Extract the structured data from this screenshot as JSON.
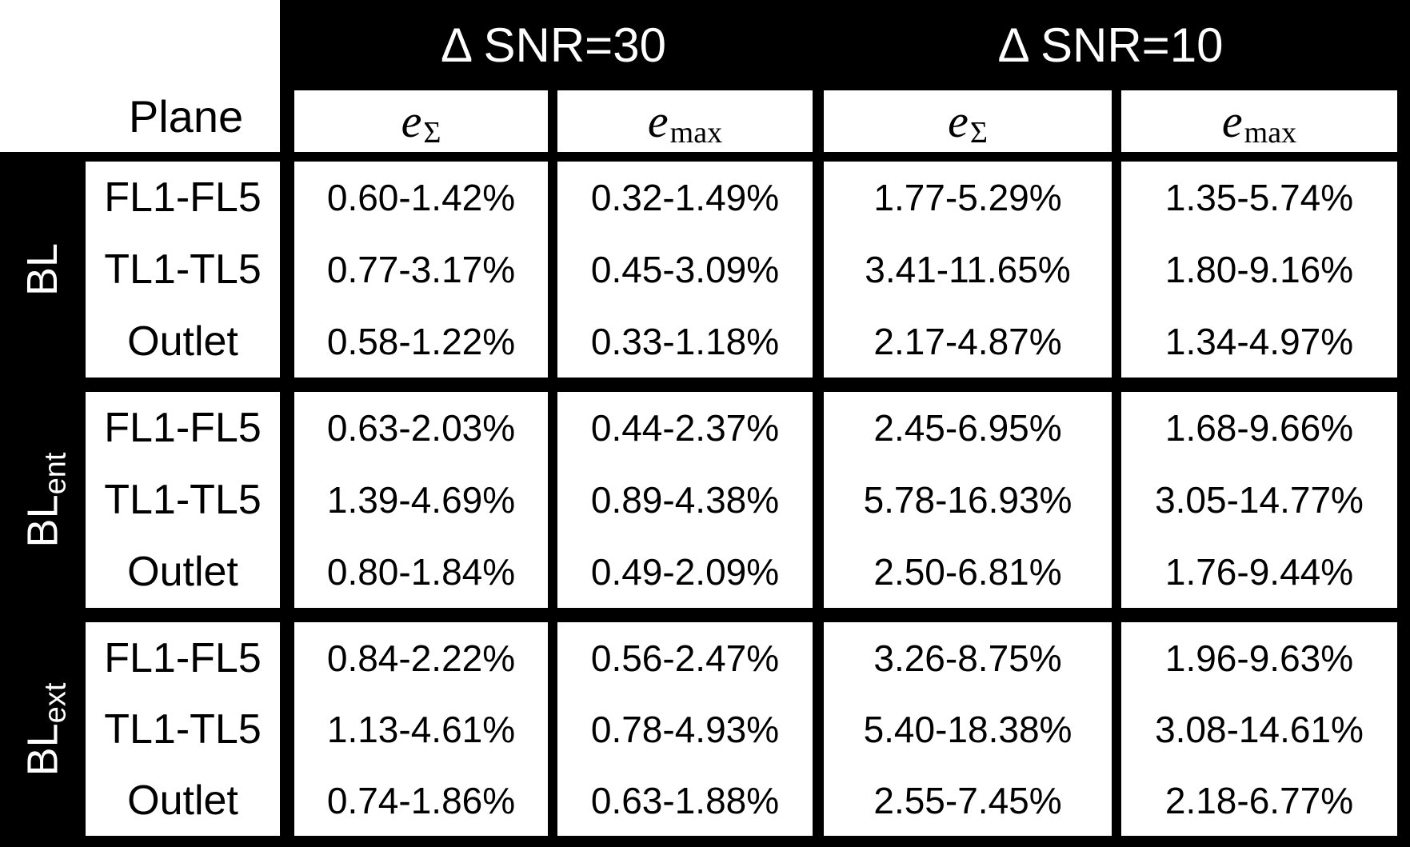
{
  "headers": {
    "snr30": "Δ SNR=30",
    "snr10": "Δ SNR=10",
    "plane": "Plane"
  },
  "subheaders": [
    {
      "base": "e",
      "sub": "Σ"
    },
    {
      "base": "e",
      "sub": "max"
    },
    {
      "base": "e",
      "sub": "Σ"
    },
    {
      "base": "e",
      "sub": "max"
    }
  ],
  "groups": [
    {
      "label": {
        "base": "BL",
        "sub": ""
      },
      "rows": [
        {
          "plane": "FL1-FL5",
          "values": [
            "0.60-1.42%",
            "0.32-1.49%",
            "1.77-5.29%",
            "1.35-5.74%"
          ]
        },
        {
          "plane": "TL1-TL5",
          "values": [
            "0.77-3.17%",
            "0.45-3.09%",
            "3.41-11.65%",
            "1.80-9.16%"
          ]
        },
        {
          "plane": "Outlet",
          "values": [
            "0.58-1.22%",
            "0.33-1.18%",
            "2.17-4.87%",
            "1.34-4.97%"
          ]
        }
      ]
    },
    {
      "label": {
        "base": "BL",
        "sub": "ent"
      },
      "rows": [
        {
          "plane": "FL1-FL5",
          "values": [
            "0.63-2.03%",
            "0.44-2.37%",
            "2.45-6.95%",
            "1.68-9.66%"
          ]
        },
        {
          "plane": "TL1-TL5",
          "values": [
            "1.39-4.69%",
            "0.89-4.38%",
            "5.78-16.93%",
            "3.05-14.77%"
          ]
        },
        {
          "plane": "Outlet",
          "values": [
            "0.80-1.84%",
            "0.49-2.09%",
            "2.50-6.81%",
            "1.76-9.44%"
          ]
        }
      ]
    },
    {
      "label": {
        "base": "BL",
        "sub": "ext"
      },
      "rows": [
        {
          "plane": "FL1-FL5",
          "values": [
            "0.84-2.22%",
            "0.56-2.47%",
            "3.26-8.75%",
            "1.96-9.63%"
          ]
        },
        {
          "plane": "TL1-TL5",
          "values": [
            "1.13-4.61%",
            "0.78-4.93%",
            "5.40-18.38%",
            "3.08-14.61%"
          ]
        },
        {
          "plane": "Outlet",
          "values": [
            "0.74-1.86%",
            "0.63-1.88%",
            "2.55-7.45%",
            "2.18-6.77%"
          ]
        }
      ]
    }
  ],
  "colors": {
    "background": "#000000",
    "cell": "#ffffff",
    "text": "#000000",
    "header_text": "#ffffff"
  }
}
